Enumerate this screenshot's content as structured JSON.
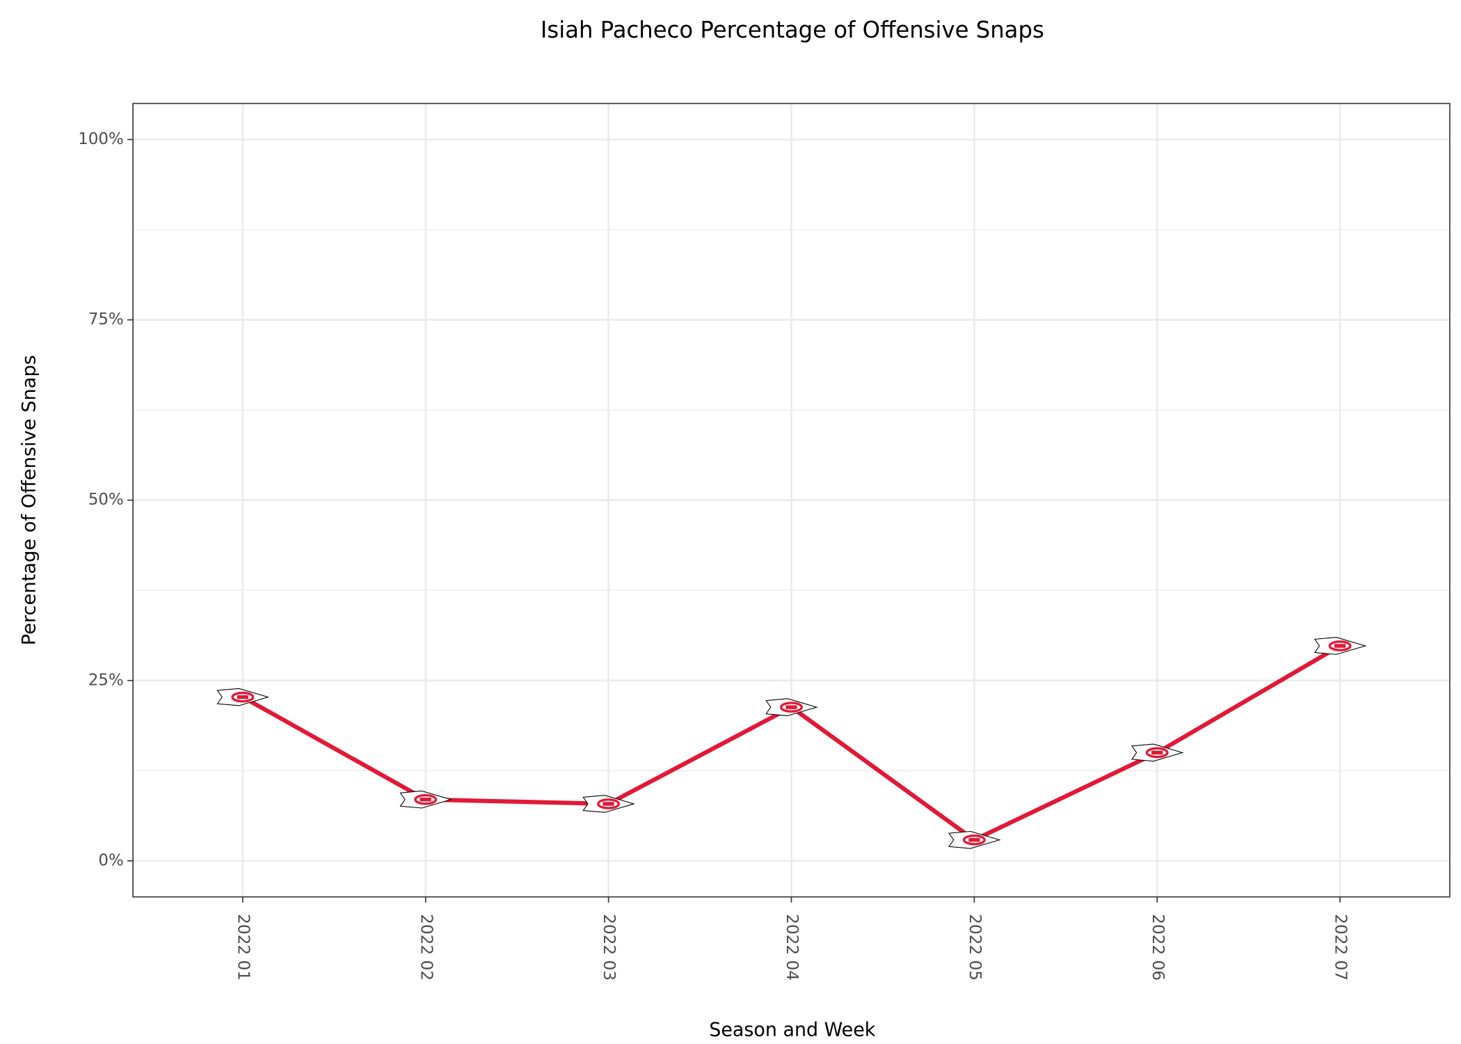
{
  "chart_data": {
    "type": "line",
    "title": "Isiah Pacheco Percentage of Offensive Snaps",
    "x_label": "Season and Week",
    "y_label": "Percentage of Offensive Snaps",
    "categories": [
      "2022 01",
      "2022 02",
      "2022 03",
      "2022 04",
      "2022 05",
      "2022 06",
      "2022 07"
    ],
    "series": [
      {
        "name": "Isiah Pacheco",
        "color": "#e31837",
        "values": [
          22.7,
          8.5,
          7.9,
          21.3,
          2.9,
          15.0,
          29.8
        ]
      }
    ],
    "ylim": [
      -5,
      105
    ],
    "yticks": [
      {
        "value": 0,
        "label": "0%"
      },
      {
        "value": 25,
        "label": "25%"
      },
      {
        "value": 50,
        "label": "50%"
      },
      {
        "value": 75,
        "label": "75%"
      },
      {
        "value": 100,
        "label": "100%"
      }
    ],
    "y_minor_gridlines": [
      12.5,
      37.5,
      62.5,
      87.5
    ],
    "grid": true,
    "legend": false
  }
}
